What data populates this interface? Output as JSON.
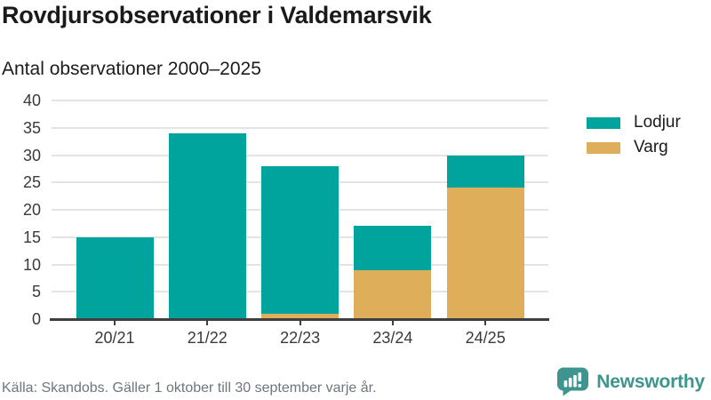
{
  "header": {
    "title": "Rovdjursobservationer i Valdemarsvik",
    "subtitle": "Antal observationer 2000–2025"
  },
  "chart_data": {
    "type": "bar",
    "stacked": true,
    "title": "Rovdjursobservationer i Valdemarsvik",
    "subtitle": "Antal observationer 2000–2025",
    "xlabel": "",
    "ylabel": "",
    "categories": [
      "20/21",
      "21/22",
      "22/23",
      "23/24",
      "24/25"
    ],
    "series": [
      {
        "name": "Lodjur",
        "color": "#00a49c",
        "values": [
          15,
          34,
          27,
          8,
          6
        ]
      },
      {
        "name": "Varg",
        "color": "#dfae5a",
        "values": [
          0,
          0,
          1,
          9,
          24
        ]
      }
    ],
    "stack_bottom_first": [
      "Varg",
      "Lodjur"
    ],
    "totals": [
      15,
      34,
      28,
      17,
      30
    ],
    "ylim": [
      0,
      40
    ],
    "yticks": [
      0,
      5,
      10,
      15,
      20,
      25,
      30,
      35,
      40
    ],
    "grid": true,
    "legend_position": "right"
  },
  "legend": {
    "items": [
      {
        "label": "Lodjur",
        "color": "#00a49c"
      },
      {
        "label": "Varg",
        "color": "#dfae5a"
      }
    ]
  },
  "footer": {
    "source": "Källa: Skandobs. Gäller 1 oktober till 30 september varje år.",
    "brand": "Newsworthy",
    "brand_color": "#3e948e",
    "brand_icon": "bar-chart-speech-bubble-icon"
  }
}
